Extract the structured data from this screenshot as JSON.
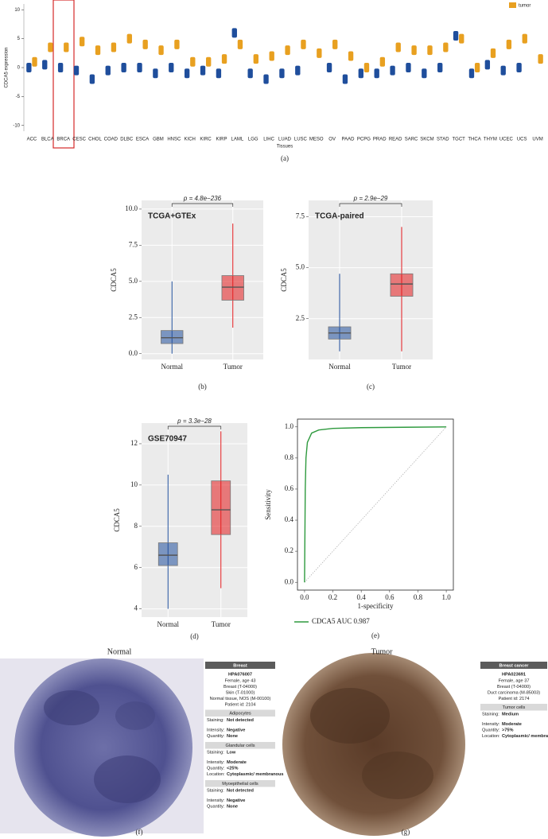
{
  "chart_data": [
    {
      "type": "strip",
      "panel": "(a)",
      "ylabel": "CDCA5 expression",
      "xlabel": "Tissues",
      "categories": [
        "ACC",
        "BLCA",
        "BRCA",
        "CESC",
        "CHOL",
        "COAD",
        "DLBC",
        "ESCA",
        "GBM",
        "HNSC",
        "KICH",
        "KIRC",
        "KIRP",
        "LAML",
        "LGG",
        "LIHC",
        "LUAD",
        "LUSC",
        "MESO",
        "OV",
        "PAAD",
        "PCPG",
        "PRAD",
        "READ",
        "SARC",
        "SKCM",
        "STAD",
        "TGCT",
        "THCA",
        "THYM",
        "UCEC",
        "UCS",
        "UVM"
      ],
      "series": [
        {
          "color": "#1f4e9c",
          "values": [
            0,
            0.5,
            0,
            -0.5,
            -2,
            -0.5,
            0,
            0,
            -1,
            0,
            -1,
            -0.5,
            -1,
            6,
            -1,
            -2,
            -1,
            -0.5,
            null,
            0,
            -2,
            -1,
            -1,
            -0.5,
            0,
            -1,
            0,
            5.5,
            -1,
            0.5,
            -0.5,
            0,
            null
          ]
        },
        {
          "name": "tumor",
          "color": "#e8a020",
          "values": [
            1,
            3.5,
            3.5,
            4.5,
            3,
            3.5,
            5,
            4,
            3,
            4,
            1,
            1,
            1.5,
            4,
            1.5,
            2,
            3,
            4,
            2.5,
            4,
            2,
            0,
            1,
            3.5,
            3,
            3,
            3.5,
            5,
            0,
            2.5,
            4,
            5,
            1.5
          ]
        }
      ],
      "ylim": [
        -11,
        11
      ],
      "yticks": [
        -10,
        -5,
        0,
        5,
        10
      ],
      "grid": false
    },
    {
      "type": "box",
      "panel": "(b)",
      "title": "TCGA+GTEx",
      "annotation": "p = 4.8e−236",
      "ylabel": "CDCA5",
      "categories": [
        "Normal",
        "Tumor"
      ],
      "boxes": [
        {
          "color": "#1f4e9c",
          "min": 0,
          "q1": 0.7,
          "median": 1.1,
          "q3": 1.6,
          "max": 5
        },
        {
          "color": "#e41a1c",
          "min": 1.8,
          "q1": 3.7,
          "median": 4.6,
          "q3": 5.4,
          "max": 9
        }
      ],
      "ylim": [
        -0.4,
        10.6
      ],
      "yticks": [
        {
          "value": 0,
          "label": "0.0"
        },
        {
          "value": 2.5,
          "label": "2.5"
        },
        {
          "value": 5,
          "label": "5.0"
        },
        {
          "value": 7.5,
          "label": "7.5"
        },
        {
          "value": 10,
          "label": "10.0"
        }
      ],
      "grid": true
    },
    {
      "type": "box",
      "panel": "(c)",
      "title": "TCGA-paired",
      "annotation": "p = 2.9e−29",
      "ylabel": "CDCA5",
      "categories": [
        "Normal",
        "Tumor"
      ],
      "boxes": [
        {
          "color": "#1f4e9c",
          "min": 0.9,
          "q1": 1.5,
          "median": 1.8,
          "q3": 2.1,
          "max": 4.7
        },
        {
          "color": "#e41a1c",
          "min": 0.9,
          "q1": 3.6,
          "median": 4.2,
          "q3": 4.7,
          "max": 7
        }
      ],
      "ylim": [
        0.5,
        8.3
      ],
      "yticks": [
        {
          "value": 2.5,
          "label": "2.5"
        },
        {
          "value": 5,
          "label": "5.0"
        },
        {
          "value": 7.5,
          "label": "7.5"
        }
      ],
      "grid": true
    },
    {
      "type": "box",
      "panel": "(d)",
      "title": "GSE70947",
      "annotation": "p = 3.3e−28",
      "ylabel": "CDCA5",
      "categories": [
        "Normal",
        "Tumor"
      ],
      "boxes": [
        {
          "color": "#1f4e9c",
          "min": 4,
          "q1": 6.1,
          "median": 6.6,
          "q3": 7.2,
          "max": 10.5
        },
        {
          "color": "#e41a1c",
          "min": 5,
          "q1": 7.6,
          "median": 8.8,
          "q3": 10.2,
          "max": 12.6
        }
      ],
      "ylim": [
        3.6,
        13
      ],
      "yticks": [
        4,
        6,
        8,
        10,
        12
      ],
      "grid": true
    },
    {
      "type": "line",
      "panel": "(e)",
      "xlabel": "1-specificity",
      "ylabel": "Sensitivity",
      "x": [
        0,
        0.005,
        0.01,
        0.02,
        0.05,
        0.1,
        0.2,
        0.4,
        1
      ],
      "series": [
        {
          "name": "CDCA5 AUC 0.987",
          "color": "#2e9a3e",
          "values": [
            0,
            0.6,
            0.8,
            0.9,
            0.96,
            0.98,
            0.99,
            0.995,
            1
          ]
        }
      ],
      "xlim": [
        -0.05,
        1.05
      ],
      "ylim": [
        -0.05,
        1.05
      ],
      "xticks": [
        {
          "value": 0,
          "label": "0.0"
        },
        {
          "value": 0.2,
          "label": "0.2"
        },
        {
          "value": 0.4,
          "label": "0.4"
        },
        {
          "value": 0.6,
          "label": "0.6"
        },
        {
          "value": 0.8,
          "label": "0.8"
        },
        {
          "value": 1,
          "label": "1.0"
        }
      ],
      "yticks": [
        {
          "value": 0,
          "label": "0.0"
        },
        {
          "value": 0.2,
          "label": "0.2"
        },
        {
          "value": 0.4,
          "label": "0.4"
        },
        {
          "value": 0.6,
          "label": "0.6"
        },
        {
          "value": 0.8,
          "label": "0.8"
        },
        {
          "value": 1,
          "label": "1.0"
        }
      ],
      "grid": false
    }
  ],
  "ihc": [
    {
      "title": "Normal",
      "panel": "(f)",
      "header": "Breast",
      "id": "HPA076007",
      "details": [
        "Female, age 43",
        "Breast (T-04000)",
        "Skin (T-01000)",
        "Normal tissue, NOS (M-00100)",
        "Patient id: 2104"
      ],
      "sections": [
        {
          "name": "Adipocytes",
          "rows": [
            [
              "Staining:",
              "Not detected"
            ],
            [
              "Intensity:",
              "Negative"
            ],
            [
              "Quantity:",
              "None"
            ]
          ]
        },
        {
          "name": "Glandular cells",
          "rows": [
            [
              "Staining:",
              "Low"
            ],
            [
              "Intensity:",
              "Moderate"
            ],
            [
              "Quantity:",
              "<25%"
            ],
            [
              "Location:",
              "Cytoplasmic/ membranous"
            ]
          ]
        },
        {
          "name": "Myoepithelial cells",
          "rows": [
            [
              "Staining:",
              "Not detected"
            ],
            [
              "Intensity:",
              "Negative"
            ],
            [
              "Quantity:",
              "None"
            ]
          ]
        }
      ]
    },
    {
      "title": "Tumor",
      "panel": "(g)",
      "header": "Breast cancer",
      "id": "HPA023691",
      "details": [
        "Female, age 37",
        "Breast (T-04000)",
        "Duct carcinoma (M-85003)",
        "Patient id: 2174"
      ],
      "sections": [
        {
          "name": "Tumor cells",
          "rows": [
            [
              "Staining:",
              "Medium"
            ],
            [
              "Intensity:",
              "Moderate"
            ],
            [
              "Quantity:",
              ">75%"
            ],
            [
              "Location:",
              "Cytoplasmic/ membranous nuclear"
            ]
          ]
        }
      ]
    }
  ]
}
